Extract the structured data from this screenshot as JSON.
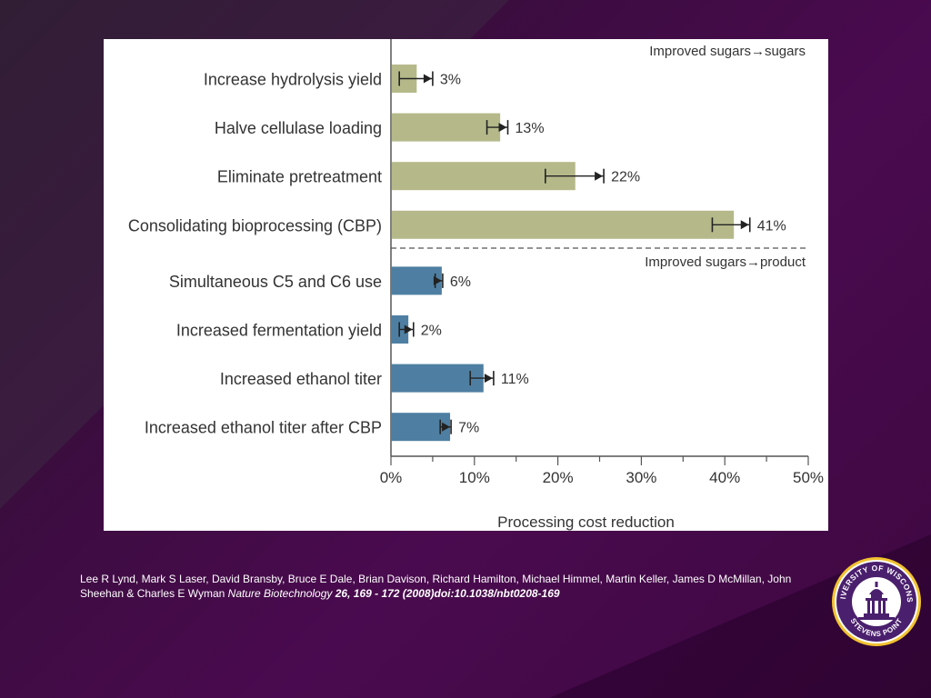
{
  "chart_data": {
    "type": "bar",
    "orientation": "horizontal",
    "xlabel": "Processing cost reduction",
    "xlim": [
      0,
      50
    ],
    "xticks": [
      "0%",
      "10%",
      "20%",
      "30%",
      "40%",
      "50%"
    ],
    "groups": [
      {
        "name": "Improved sugars→sugars",
        "color": "#b5b98a",
        "items": [
          {
            "category": "Increase hydrolysis yield",
            "value": 3,
            "label": "3%",
            "err_low": 1,
            "err_high": 5
          },
          {
            "category": "Halve cellulase loading",
            "value": 13,
            "label": "13%",
            "err_low": 11.5,
            "err_high": 14
          },
          {
            "category": "Eliminate pretreatment",
            "value": 22,
            "label": "22%",
            "err_low": 18.5,
            "err_high": 25.5
          },
          {
            "category": "Consolidating bioprocessing (CBP)",
            "value": 41,
            "label": "41%",
            "err_low": 38.5,
            "err_high": 43
          }
        ]
      },
      {
        "name": "Improved sugars→product",
        "color": "#4e7fa2",
        "items": [
          {
            "category": "Simultaneous C5 and C6 use",
            "value": 6,
            "label": "6%",
            "err_low": 5.3,
            "err_high": 6.2
          },
          {
            "category": "Increased fermentation yield",
            "value": 2,
            "label": "2%",
            "err_low": 1,
            "err_high": 2.7
          },
          {
            "category": "Increased ethanol titer",
            "value": 11,
            "label": "11%",
            "err_low": 9.5,
            "err_high": 12.3
          },
          {
            "category": "Increased ethanol titer after CBP",
            "value": 7,
            "label": "7%",
            "err_low": 5.9,
            "err_high": 7.2
          }
        ]
      }
    ]
  },
  "citation": {
    "authors": "Lee R Lynd, Mark S Laser, David Bransby, Bruce E Dale, Brian Davison, Richard Hamilton, Michael Himmel, Martin Keller, James D McMillan, John Sheehan & Charles E Wyman",
    "journal": "Nature Biotechnology",
    "ref": "26, 169 - 172 (2008)doi:10.1038/nbt0208-169"
  },
  "logo": {
    "text_top": "UNIVERSITY OF WISCONSIN",
    "text_bottom": "STEVENS POINT"
  }
}
